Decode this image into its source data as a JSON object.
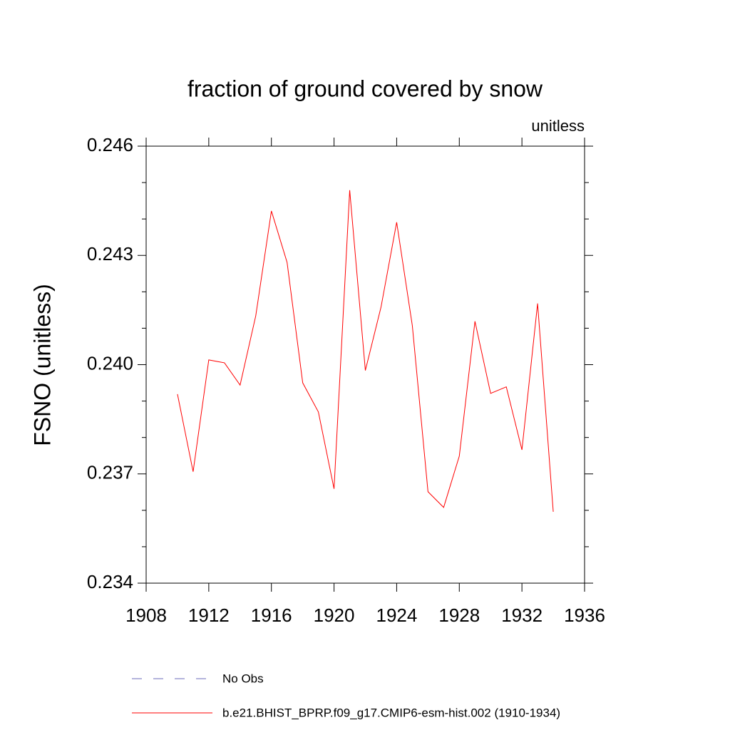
{
  "chart_data": {
    "type": "line",
    "title": "fraction of ground covered by snow",
    "subtitle": "unitless",
    "y_label": "FSNO  (unitless)",
    "x": [
      1910,
      1911,
      1912,
      1913,
      1914,
      1915,
      1916,
      1917,
      1918,
      1919,
      1920,
      1921,
      1922,
      1923,
      1924,
      1925,
      1926,
      1927,
      1928,
      1929,
      1930,
      1931,
      1932,
      1933,
      1934
    ],
    "series": [
      {
        "name": "b.e21.BHIST_BPRP.f09_g17.CMIP6-esm-hist.002 (1910-1934)",
        "color": "#ff0000",
        "values": [
          0.23919,
          0.23706,
          0.24013,
          0.24005,
          0.23944,
          0.24134,
          0.24422,
          0.24281,
          0.2395,
          0.2387,
          0.23659,
          0.24479,
          0.23984,
          0.24158,
          0.24391,
          0.24107,
          0.23651,
          0.23608,
          0.23749,
          0.24119,
          0.23921,
          0.23939,
          0.23766,
          0.24168,
          0.23596
        ]
      }
    ],
    "reference": {
      "name": "No Obs",
      "color": "#6a6ab8"
    },
    "xlim": [
      1908,
      1936
    ],
    "xticks": [
      1908,
      1912,
      1916,
      1920,
      1924,
      1928,
      1932,
      1936
    ],
    "ylim": [
      0.234,
      0.246
    ],
    "yticks": [
      {
        "value": 0.234,
        "label": "0.234"
      },
      {
        "value": 0.237,
        "label": "0.237"
      },
      {
        "value": 0.24,
        "label": "0.240"
      },
      0.243,
      {
        "value": 0.246,
        "label": "0.246"
      }
    ],
    "yminor_ticks": [
      0.235,
      0.236,
      0.238,
      0.239,
      0.241,
      0.242,
      0.244,
      0.245
    ]
  }
}
